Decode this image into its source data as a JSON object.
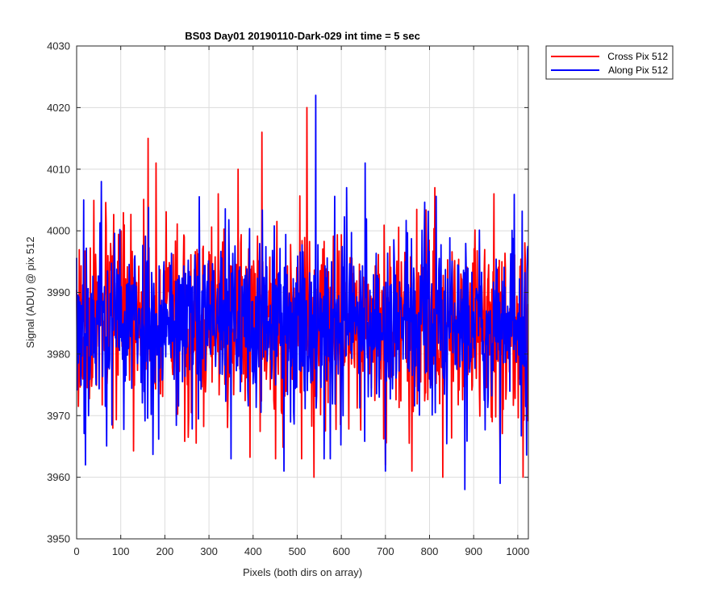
{
  "chart_data": {
    "type": "line",
    "title": "BS03 Day01 20190110-Dark-029 int time = 5 sec",
    "xlabel": "Pixels (both dirs on array)",
    "ylabel": "Signal (ADU) @ pix 512",
    "xlim": [
      0,
      1024
    ],
    "ylim": [
      3950,
      4030
    ],
    "xticks": [
      0,
      100,
      200,
      300,
      400,
      500,
      600,
      700,
      800,
      900,
      1000
    ],
    "yticks": [
      3950,
      3960,
      3970,
      3980,
      3990,
      4000,
      4010,
      4020,
      4030
    ],
    "grid": true,
    "legend_position": "outside-top-right",
    "series_style": {
      "mean": 3985,
      "stdev": 7.5,
      "samples": 1024
    },
    "series": [
      {
        "name": "Cross Pix 512",
        "color": "#ff0000",
        "generated": true,
        "seed": 17,
        "peaks": [
          [
            162,
            4015
          ],
          [
            180,
            4011
          ],
          [
            420,
            4016
          ],
          [
            522,
            4020
          ],
          [
            366,
            4010
          ],
          [
            812,
            4007
          ],
          [
            538,
            3960
          ],
          [
            830,
            3960
          ],
          [
            1012,
            3960
          ],
          [
            960,
            3962
          ],
          [
            700,
            3962
          ],
          [
            760,
            3961
          ]
        ]
      },
      {
        "name": "Along Pix 512",
        "color": "#0000ff",
        "generated": true,
        "seed": 53,
        "peaks": [
          [
            542,
            4022
          ],
          [
            654,
            4011
          ],
          [
            56,
            4008
          ],
          [
            16,
            4005
          ],
          [
            612,
            4007
          ],
          [
            20,
            3962
          ],
          [
            880,
            3958
          ],
          [
            960,
            3959
          ],
          [
            700,
            3961
          ],
          [
            470,
            3961
          ],
          [
            575,
            3963
          ],
          [
            350,
            3963
          ]
        ]
      }
    ]
  }
}
